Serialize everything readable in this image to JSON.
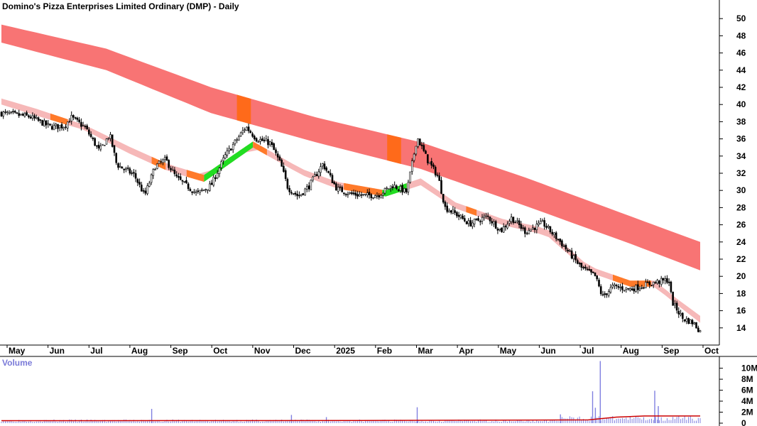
{
  "chart_data": {
    "type": "candlestick",
    "title": "Domino's Pizza Enterprises Limited Ordinary (DMP) - Daily",
    "price_axis": {
      "ticks": [
        14,
        16,
        18,
        20,
        22,
        24,
        26,
        28,
        30,
        32,
        34,
        36,
        38,
        40,
        42,
        44,
        46,
        48,
        50
      ],
      "range": [
        12.5,
        51.5
      ]
    },
    "x_labels": [
      "May",
      "Jun",
      "Jul",
      "Aug",
      "Sep",
      "Oct",
      "Nov",
      "Dec",
      "2025",
      "Feb",
      "Mar",
      "Apr",
      "May",
      "Jun",
      "Jul",
      "Aug",
      "Sep",
      "Oct"
    ],
    "volume": {
      "title": "Volume",
      "ticks": [
        "10M",
        "8M",
        "6M",
        "4M",
        "2M",
        "0"
      ],
      "tick_values": [
        10,
        8,
        6,
        4,
        2,
        0
      ],
      "range": [
        0,
        11.5
      ],
      "unit": "M",
      "typical": 0.45,
      "spikes": [
        {
          "t": 0.215,
          "v": 2.6
        },
        {
          "t": 0.415,
          "v": 1.5
        },
        {
          "t": 0.465,
          "v": 1.1
        },
        {
          "t": 0.595,
          "v": 2.9
        },
        {
          "t": 0.8,
          "v": 1.6
        },
        {
          "t": 0.846,
          "v": 5.8
        },
        {
          "t": 0.85,
          "v": 2.8
        },
        {
          "t": 0.857,
          "v": 11.3
        },
        {
          "t": 0.935,
          "v": 5.9
        },
        {
          "t": 0.94,
          "v": 3.1
        }
      ],
      "average": [
        [
          0,
          0.45
        ],
        [
          0.5,
          0.48
        ],
        [
          0.84,
          0.6
        ],
        [
          0.88,
          1.1
        ],
        [
          0.92,
          1.3
        ],
        [
          1.0,
          1.3
        ]
      ]
    },
    "price_path": [
      [
        0.0,
        39.0
      ],
      [
        0.04,
        38.6
      ],
      [
        0.07,
        37.4
      ],
      [
        0.09,
        37.5
      ],
      [
        0.1,
        38.5
      ],
      [
        0.12,
        37.3
      ],
      [
        0.14,
        34.6
      ],
      [
        0.155,
        36.5
      ],
      [
        0.165,
        33.0
      ],
      [
        0.19,
        31.8
      ],
      [
        0.205,
        29.4
      ],
      [
        0.22,
        32.8
      ],
      [
        0.235,
        33.6
      ],
      [
        0.25,
        31.5
      ],
      [
        0.28,
        29.6
      ],
      [
        0.3,
        30.6
      ],
      [
        0.32,
        34.0
      ],
      [
        0.35,
        37.4
      ],
      [
        0.365,
        36.0
      ],
      [
        0.385,
        35.5
      ],
      [
        0.4,
        33.0
      ],
      [
        0.41,
        30.3
      ],
      [
        0.425,
        29.3
      ],
      [
        0.44,
        30.5
      ],
      [
        0.46,
        33.1
      ],
      [
        0.48,
        30.2
      ],
      [
        0.5,
        29.6
      ],
      [
        0.52,
        29.4
      ],
      [
        0.54,
        29.5
      ],
      [
        0.56,
        30.6
      ],
      [
        0.58,
        29.8
      ],
      [
        0.595,
        36.2
      ],
      [
        0.61,
        33.5
      ],
      [
        0.625,
        31.6
      ],
      [
        0.635,
        28.0
      ],
      [
        0.65,
        27.3
      ],
      [
        0.67,
        26.1
      ],
      [
        0.695,
        27.0
      ],
      [
        0.715,
        25.3
      ],
      [
        0.73,
        26.8
      ],
      [
        0.75,
        25.2
      ],
      [
        0.775,
        26.2
      ],
      [
        0.8,
        24.0
      ],
      [
        0.83,
        21.0
      ],
      [
        0.85,
        20.0
      ],
      [
        0.86,
        17.6
      ],
      [
        0.875,
        18.8
      ],
      [
        0.9,
        18.5
      ],
      [
        0.93,
        19.2
      ],
      [
        0.955,
        19.6
      ],
      [
        0.96,
        17.0
      ],
      [
        0.975,
        15.1
      ],
      [
        0.99,
        14.6
      ],
      [
        1.0,
        13.6
      ]
    ],
    "upper_band": {
      "upper": [
        [
          0.0,
          49.3
        ],
        [
          0.15,
          46.5
        ],
        [
          0.3,
          42.0
        ],
        [
          0.45,
          38.5
        ],
        [
          0.6,
          35.6
        ],
        [
          0.75,
          31.5
        ],
        [
          0.9,
          27.0
        ],
        [
          1.0,
          24.0
        ]
      ],
      "lower": [
        [
          0.0,
          47.2
        ],
        [
          0.15,
          44.0
        ],
        [
          0.3,
          39.0
        ],
        [
          0.45,
          35.6
        ],
        [
          0.6,
          32.5
        ],
        [
          0.75,
          28.2
        ],
        [
          0.9,
          23.8
        ],
        [
          1.0,
          20.7
        ]
      ],
      "color": "#f87474",
      "highlights": [
        {
          "from": 0.337,
          "to": 0.357,
          "color": "#ff6a1a"
        },
        {
          "from": 0.552,
          "to": 0.572,
          "color": "#ff6a1a"
        }
      ]
    },
    "lower_band": {
      "upper": [
        [
          0.0,
          40.7
        ],
        [
          0.05,
          39.5
        ],
        [
          0.12,
          37.6
        ],
        [
          0.18,
          35.2
        ],
        [
          0.24,
          33.0
        ],
        [
          0.29,
          31.8
        ],
        [
          0.36,
          35.7
        ],
        [
          0.43,
          32.5
        ],
        [
          0.48,
          31.0
        ],
        [
          0.55,
          30.0
        ],
        [
          0.6,
          31.4
        ],
        [
          0.65,
          28.6
        ],
        [
          0.72,
          26.6
        ],
        [
          0.78,
          25.6
        ],
        [
          0.84,
          21.2
        ],
        [
          0.9,
          19.5
        ],
        [
          0.935,
          19.5
        ],
        [
          0.965,
          17.5
        ],
        [
          1.0,
          15.4
        ]
      ],
      "lower": [
        [
          0.0,
          40.0
        ],
        [
          0.05,
          38.7
        ],
        [
          0.12,
          37.0
        ],
        [
          0.18,
          34.4
        ],
        [
          0.24,
          32.2
        ],
        [
          0.29,
          31.0
        ],
        [
          0.36,
          35.0
        ],
        [
          0.43,
          31.8
        ],
        [
          0.48,
          30.2
        ],
        [
          0.55,
          29.3
        ],
        [
          0.6,
          30.6
        ],
        [
          0.65,
          27.9
        ],
        [
          0.72,
          25.9
        ],
        [
          0.78,
          24.8
        ],
        [
          0.84,
          20.5
        ],
        [
          0.9,
          18.8
        ],
        [
          0.935,
          18.8
        ],
        [
          0.965,
          16.8
        ],
        [
          1.0,
          14.6
        ]
      ],
      "color": "#f6b8b8",
      "segments": [
        {
          "from": 0.07,
          "to": 0.095,
          "color": "#ff7a2a"
        },
        {
          "from": 0.215,
          "to": 0.235,
          "color": "#ff7a2a"
        },
        {
          "from": 0.265,
          "to": 0.29,
          "color": "#ff7a2a"
        },
        {
          "from": 0.29,
          "to": 0.36,
          "color": "#22dd22"
        },
        {
          "from": 0.36,
          "to": 0.38,
          "color": "#ff7a2a"
        },
        {
          "from": 0.49,
          "to": 0.545,
          "color": "#ff7a2a"
        },
        {
          "from": 0.545,
          "to": 0.58,
          "color": "#22dd22"
        },
        {
          "from": 0.665,
          "to": 0.68,
          "color": "#ff7a2a"
        },
        {
          "from": 0.875,
          "to": 0.93,
          "color": "#ff7a2a"
        }
      ]
    },
    "grid": false,
    "legend": "none"
  }
}
